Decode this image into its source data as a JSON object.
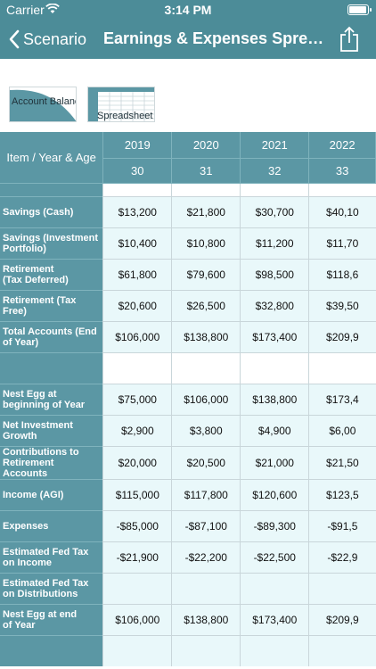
{
  "status": {
    "carrier": "Carrier",
    "time": "3:14 PM"
  },
  "nav": {
    "back_label": "Scenario",
    "title": "Earnings & Expenses Spread..."
  },
  "tabs": [
    {
      "label": "Account Balance"
    },
    {
      "label": "Spreadsheet"
    }
  ],
  "table": {
    "corner_label": "Item / Year & Age",
    "years": [
      "2019",
      "2020",
      "2021",
      "2022"
    ],
    "ages": [
      "30",
      "31",
      "32",
      "33"
    ],
    "rows": [
      {
        "label": "",
        "values": [
          "",
          "",
          "",
          ""
        ]
      },
      {
        "label": "Savings (Cash)",
        "values": [
          "$13,200",
          "$21,800",
          "$30,700",
          "$40,10"
        ]
      },
      {
        "label": "Savings (Investment Portfolio)",
        "values": [
          "$10,400",
          "$10,800",
          "$11,200",
          "$11,70"
        ]
      },
      {
        "label": "Retirement\n(Tax Deferred)",
        "values": [
          "$61,800",
          "$79,600",
          "$98,500",
          "$118,6"
        ]
      },
      {
        "label": "Retirement (Tax Free)",
        "values": [
          "$20,600",
          "$26,500",
          "$32,800",
          "$39,50"
        ]
      },
      {
        "label": "Total Accounts (End of Year)",
        "values": [
          "$106,000",
          "$138,800",
          "$173,400",
          "$209,9"
        ]
      },
      {
        "label": "",
        "values": [
          "",
          "",
          "",
          ""
        ]
      },
      {
        "label": "Nest Egg at beginning of Year",
        "values": [
          "$75,000",
          "$106,000",
          "$138,800",
          "$173,4"
        ]
      },
      {
        "label": "Net Investment Growth",
        "values": [
          "$2,900",
          "$3,800",
          "$4,900",
          "$6,00"
        ]
      },
      {
        "label": "Contributions to Retirement Accounts",
        "values": [
          "$20,000",
          "$20,500",
          "$21,000",
          "$21,50"
        ]
      },
      {
        "label": "Income (AGI)",
        "values": [
          "$115,000",
          "$117,800",
          "$120,600",
          "$123,5"
        ]
      },
      {
        "label": "Expenses",
        "values": [
          "-$85,000",
          "-$87,100",
          "-$89,300",
          "-$91,5"
        ]
      },
      {
        "label": "Estimated Fed Tax on Income",
        "values": [
          "-$21,900",
          "-$22,200",
          "-$22,500",
          "-$22,9"
        ]
      },
      {
        "label": "Estimated Fed Tax on Distributions",
        "values": [
          "",
          "",
          "",
          ""
        ]
      },
      {
        "label": "Nest Egg at end\nof Year",
        "values": [
          "$106,000",
          "$138,800",
          "$173,400",
          "$209,9"
        ]
      },
      {
        "label": "",
        "values": [
          "",
          "",
          "",
          ""
        ]
      }
    ]
  }
}
